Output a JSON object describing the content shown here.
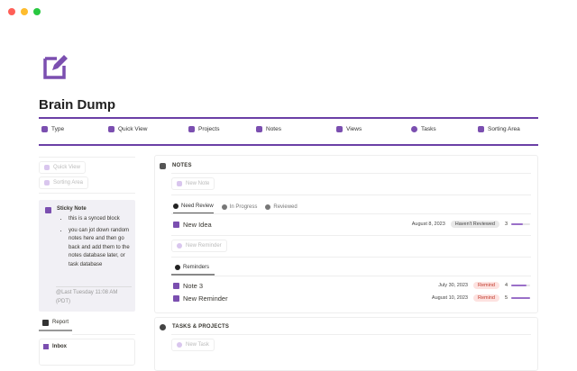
{
  "window": {
    "controls": [
      "#ff5f57",
      "#febc2e",
      "#28c840"
    ]
  },
  "page": {
    "title": "Brain Dump",
    "icon": "edit-square-icon",
    "accent": "#6b3fa6"
  },
  "nav": [
    {
      "label": "Type",
      "icon": "tag-icon"
    },
    {
      "label": "Quick View",
      "icon": "quick-view-icon"
    },
    {
      "label": "Projects",
      "icon": "stack-icon"
    },
    {
      "label": "Notes",
      "icon": "document-icon"
    },
    {
      "label": "Views",
      "icon": "grid-icon"
    },
    {
      "label": "Tasks",
      "icon": "check-circle-icon"
    },
    {
      "label": "Sorting Area",
      "icon": "shapes-icon"
    }
  ],
  "sidebar": {
    "buttons": [
      {
        "label": "Quick View"
      },
      {
        "label": "Sorting Area"
      }
    ],
    "sticky": {
      "title": "Sticky Note",
      "items": [
        "this is a synced block",
        "you can jot down random notes here and then go back and add them to the notes database later, or task database"
      ],
      "timestamp": "@Last Tuesday 11:08 AM (PDT)"
    },
    "report_tab": "Report",
    "inbox": "Inbox"
  },
  "notes": {
    "heading": "NOTES",
    "new_note": "New Note",
    "tabs": [
      {
        "label": "Need Review",
        "active": true
      },
      {
        "label": "In Progress"
      },
      {
        "label": "Reviewed"
      }
    ],
    "rows": [
      {
        "name": "New Idea",
        "date": "August 8, 2023",
        "status": "Haven't Reviewed",
        "value": 3,
        "progress": 0.6
      }
    ],
    "new_reminder": "New Reminder",
    "reminders_tab": "Reminders",
    "reminders": [
      {
        "name": "Note 3",
        "date": "July 30, 2023",
        "status": "Remind",
        "value": 4,
        "progress": 0.8
      },
      {
        "name": "New Reminder",
        "date": "August 10, 2023",
        "status": "Remind",
        "value": 5,
        "progress": 1.0
      }
    ]
  },
  "tasks": {
    "heading": "TASKS & PROJECTS",
    "new_task": "New Task"
  }
}
